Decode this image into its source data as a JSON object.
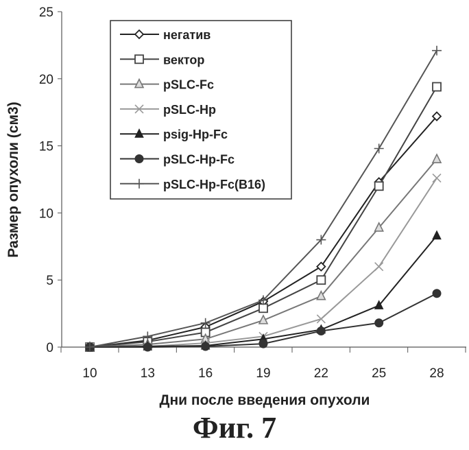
{
  "chart_data": {
    "type": "line",
    "title": "",
    "xlabel": "Дни после введения опухоли",
    "ylabel": "Размер опухоли (см3)",
    "x": [
      10,
      13,
      16,
      19,
      22,
      25,
      28
    ],
    "xticks": [
      "10",
      "13",
      "16",
      "19",
      "22",
      "25",
      "28"
    ],
    "yticks": [
      "0",
      "5",
      "10",
      "15",
      "20",
      "25"
    ],
    "ylim": [
      0,
      25
    ],
    "grid": false,
    "legend_position": "top-left",
    "series": [
      {
        "name": "негатив",
        "marker": "diamond-open",
        "color": "#222222",
        "values": [
          0,
          0.5,
          1.5,
          3.4,
          6.0,
          12.3,
          17.2
        ]
      },
      {
        "name": "вектор",
        "marker": "square-open",
        "color": "#444444",
        "values": [
          0,
          0.4,
          1.1,
          2.9,
          5.0,
          12.0,
          19.4
        ]
      },
      {
        "name": "pSLC-Fc",
        "marker": "triangle-open",
        "color": "#777777",
        "values": [
          0,
          0.2,
          0.6,
          2.0,
          3.8,
          8.9,
          14.0
        ]
      },
      {
        "name": "pSLC-Hp",
        "marker": "x",
        "color": "#999999",
        "values": [
          0,
          0.05,
          0.3,
          0.8,
          2.1,
          6.0,
          12.6
        ]
      },
      {
        "name": "psig-Hp-Fc",
        "marker": "triangle-filled",
        "color": "#222222",
        "values": [
          0,
          0.05,
          0.1,
          0.6,
          1.3,
          3.1,
          8.3
        ]
      },
      {
        "name": "pSLC-Hp-Fc",
        "marker": "circle-filled",
        "color": "#333333",
        "values": [
          0,
          0.0,
          0.05,
          0.25,
          1.2,
          1.8,
          4.0
        ]
      },
      {
        "name": "pSLC-Hp-Fc(B16)",
        "marker": "plus",
        "color": "#555555",
        "values": [
          0,
          0.8,
          1.8,
          3.5,
          8.0,
          14.8,
          22.1
        ]
      }
    ]
  },
  "figure_caption": "Фиг. 7"
}
